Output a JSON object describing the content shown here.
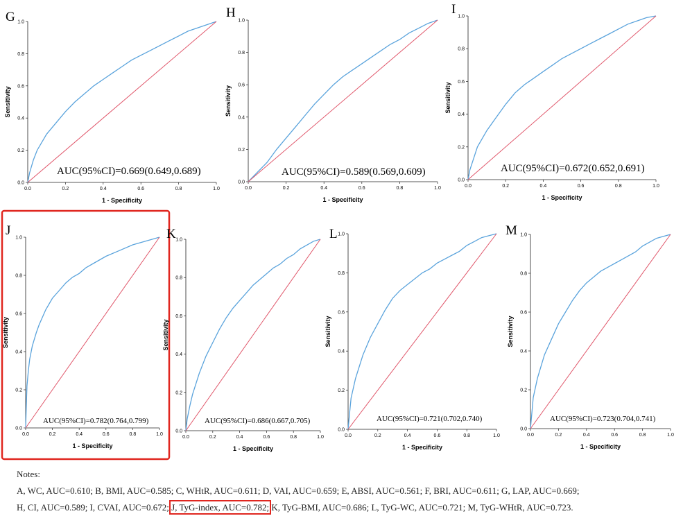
{
  "chart_data": [
    {
      "panel": "G",
      "type": "line",
      "xlabel": "1 - Specificity",
      "ylabel": "Sensitivity",
      "xlim": [
        0,
        1
      ],
      "ylim": [
        0,
        1
      ],
      "xticks": [
        "0.0",
        "0.2",
        "0.4",
        "0.6",
        "0.8",
        "1.0"
      ],
      "yticks": [
        "0.0",
        "0.2",
        "0.4",
        "0.6",
        "0.8",
        "1.0"
      ],
      "annotation": "AUC(95%CI)=0.669(0.649,0.689)",
      "auc": 0.669,
      "series": [
        {
          "color": "#5aa3dc",
          "x": [
            0,
            0.01,
            0.03,
            0.05,
            0.1,
            0.15,
            0.2,
            0.25,
            0.3,
            0.35,
            0.4,
            0.45,
            0.5,
            0.55,
            0.6,
            0.65,
            0.7,
            0.75,
            0.8,
            0.85,
            0.9,
            0.95,
            1.0
          ],
          "y": [
            0,
            0.06,
            0.14,
            0.2,
            0.3,
            0.37,
            0.44,
            0.5,
            0.55,
            0.6,
            0.64,
            0.68,
            0.72,
            0.76,
            0.79,
            0.82,
            0.85,
            0.88,
            0.91,
            0.94,
            0.96,
            0.98,
            1.0
          ]
        },
        {
          "color": "#e0566a",
          "x": [
            0,
            1
          ],
          "y": [
            0,
            1
          ]
        }
      ]
    },
    {
      "panel": "H",
      "type": "line",
      "xlabel": "1 - Specificity",
      "ylabel": "Sensitivity",
      "xlim": [
        0,
        1
      ],
      "ylim": [
        0,
        1
      ],
      "xticks": [
        "0.0",
        "0.2",
        "0.4",
        "0.6",
        "0.8",
        "1.0"
      ],
      "yticks": [
        "0.0",
        "0.2",
        "0.4",
        "0.6",
        "0.8",
        "1.0"
      ],
      "annotation": "AUC(95%CI)=0.589(0.569,0.609)",
      "auc": 0.589,
      "series": [
        {
          "color": "#5aa3dc",
          "x": [
            0,
            0.05,
            0.1,
            0.15,
            0.2,
            0.25,
            0.3,
            0.35,
            0.4,
            0.45,
            0.5,
            0.55,
            0.6,
            0.65,
            0.7,
            0.75,
            0.8,
            0.85,
            0.9,
            0.95,
            1.0
          ],
          "y": [
            0,
            0.06,
            0.12,
            0.2,
            0.27,
            0.34,
            0.41,
            0.48,
            0.54,
            0.6,
            0.65,
            0.69,
            0.73,
            0.77,
            0.81,
            0.85,
            0.88,
            0.92,
            0.95,
            0.98,
            1.0
          ]
        },
        {
          "color": "#e0566a",
          "x": [
            0,
            1
          ],
          "y": [
            0,
            1
          ]
        }
      ]
    },
    {
      "panel": "I",
      "type": "line",
      "xlabel": "1 - Specificity",
      "ylabel": "Sensitivity",
      "xlim": [
        0,
        1
      ],
      "ylim": [
        0,
        1
      ],
      "xticks": [
        "0.0",
        "0.2",
        "0.4",
        "0.6",
        "0.8",
        "1.0"
      ],
      "yticks": [
        "0.0",
        "0.2",
        "0.4",
        "0.6",
        "0.8",
        "1.0"
      ],
      "annotation": "AUC(95%CI)=0.672(0.652,0.691)",
      "auc": 0.672,
      "series": [
        {
          "color": "#5aa3dc",
          "x": [
            0,
            0.01,
            0.03,
            0.05,
            0.1,
            0.15,
            0.2,
            0.25,
            0.3,
            0.35,
            0.4,
            0.45,
            0.5,
            0.55,
            0.6,
            0.65,
            0.7,
            0.75,
            0.8,
            0.85,
            0.9,
            0.95,
            1.0
          ],
          "y": [
            0,
            0.06,
            0.13,
            0.2,
            0.3,
            0.38,
            0.46,
            0.53,
            0.58,
            0.62,
            0.66,
            0.7,
            0.74,
            0.77,
            0.8,
            0.83,
            0.86,
            0.89,
            0.92,
            0.95,
            0.97,
            0.99,
            1.0
          ]
        },
        {
          "color": "#e0566a",
          "x": [
            0,
            1
          ],
          "y": [
            0,
            1
          ]
        }
      ]
    },
    {
      "panel": "J",
      "type": "line",
      "xlabel": "1 - Specificity",
      "ylabel": "Sensitivity",
      "xlim": [
        0,
        1
      ],
      "ylim": [
        0,
        1
      ],
      "xticks": [
        "0.0",
        "0.2",
        "0.4",
        "0.6",
        "0.8",
        "1.0"
      ],
      "yticks": [
        "0.0",
        "0.2",
        "0.4",
        "0.6",
        "0.8",
        "1.0"
      ],
      "annotation": "AUC(95%CI)=0.782(0.764,0.799)",
      "auc": 0.782,
      "highlighted": true,
      "series": [
        {
          "color": "#5aa3dc",
          "x": [
            0,
            0.005,
            0.01,
            0.02,
            0.03,
            0.05,
            0.08,
            0.1,
            0.15,
            0.2,
            0.25,
            0.3,
            0.35,
            0.4,
            0.45,
            0.5,
            0.55,
            0.6,
            0.7,
            0.8,
            0.9,
            1.0
          ],
          "y": [
            0,
            0.12,
            0.22,
            0.3,
            0.36,
            0.43,
            0.5,
            0.54,
            0.62,
            0.68,
            0.72,
            0.76,
            0.79,
            0.81,
            0.84,
            0.86,
            0.88,
            0.9,
            0.93,
            0.96,
            0.98,
            1.0
          ]
        },
        {
          "color": "#e0566a",
          "x": [
            0,
            1
          ],
          "y": [
            0,
            1
          ]
        }
      ]
    },
    {
      "panel": "K",
      "type": "line",
      "xlabel": "1 - Specificity",
      "ylabel": "Sensitivity",
      "xlim": [
        0,
        1
      ],
      "ylim": [
        0,
        1
      ],
      "xticks": [
        "0.0",
        "0.2",
        "0.4",
        "0.6",
        "0.8",
        "1.0"
      ],
      "yticks": [
        "0.0",
        "0.2",
        "0.4",
        "0.6",
        "0.8",
        "1.0"
      ],
      "annotation": "AUC(95%CI)=0.686(0.667,0.705)",
      "auc": 0.686,
      "series": [
        {
          "color": "#5aa3dc",
          "x": [
            0,
            0.01,
            0.03,
            0.05,
            0.1,
            0.15,
            0.2,
            0.25,
            0.3,
            0.35,
            0.4,
            0.45,
            0.5,
            0.55,
            0.6,
            0.65,
            0.7,
            0.75,
            0.8,
            0.85,
            0.9,
            0.95,
            1.0
          ],
          "y": [
            0,
            0.06,
            0.13,
            0.19,
            0.3,
            0.39,
            0.46,
            0.53,
            0.59,
            0.64,
            0.68,
            0.72,
            0.76,
            0.79,
            0.82,
            0.85,
            0.87,
            0.9,
            0.92,
            0.95,
            0.97,
            0.99,
            1.0
          ]
        },
        {
          "color": "#e0566a",
          "x": [
            0,
            1
          ],
          "y": [
            0,
            1
          ]
        }
      ]
    },
    {
      "panel": "L",
      "type": "line",
      "xlabel": "1 - Specificity",
      "ylabel": "Sensitivity",
      "xlim": [
        0,
        1
      ],
      "ylim": [
        0,
        1
      ],
      "xticks": [
        "0.0",
        "0.2",
        "0.4",
        "0.6",
        "0.8",
        "1.0"
      ],
      "yticks": [
        "0.0",
        "0.2",
        "0.4",
        "0.6",
        "0.8",
        "1.0"
      ],
      "annotation": "AUC(95%CI)=0.721(0.702,0.740)",
      "auc": 0.721,
      "series": [
        {
          "color": "#5aa3dc",
          "x": [
            0,
            0.01,
            0.02,
            0.05,
            0.1,
            0.15,
            0.2,
            0.25,
            0.3,
            0.35,
            0.4,
            0.45,
            0.5,
            0.55,
            0.6,
            0.65,
            0.7,
            0.75,
            0.8,
            0.85,
            0.9,
            0.95,
            1.0
          ],
          "y": [
            0,
            0.08,
            0.16,
            0.26,
            0.38,
            0.47,
            0.54,
            0.61,
            0.67,
            0.71,
            0.74,
            0.77,
            0.8,
            0.82,
            0.85,
            0.87,
            0.89,
            0.91,
            0.94,
            0.96,
            0.98,
            0.99,
            1.0
          ]
        },
        {
          "color": "#e0566a",
          "x": [
            0,
            1
          ],
          "y": [
            0,
            1
          ]
        }
      ]
    },
    {
      "panel": "M",
      "type": "line",
      "xlabel": "1 - Specificity",
      "ylabel": "Sensitivity",
      "xlim": [
        0,
        1
      ],
      "ylim": [
        0,
        1
      ],
      "xticks": [
        "0.0",
        "0.2",
        "0.4",
        "0.6",
        "0.8",
        "1.0"
      ],
      "yticks": [
        "0.0",
        "0.2",
        "0.4",
        "0.6",
        "0.8",
        "1.0"
      ],
      "annotation": "AUC(95%CI)=0.723(0.704,0.741)",
      "auc": 0.723,
      "series": [
        {
          "color": "#5aa3dc",
          "x": [
            0,
            0.01,
            0.02,
            0.05,
            0.1,
            0.15,
            0.2,
            0.25,
            0.3,
            0.35,
            0.4,
            0.45,
            0.5,
            0.55,
            0.6,
            0.65,
            0.7,
            0.75,
            0.8,
            0.85,
            0.9,
            0.95,
            1.0
          ],
          "y": [
            0,
            0.08,
            0.16,
            0.26,
            0.38,
            0.46,
            0.54,
            0.6,
            0.66,
            0.71,
            0.75,
            0.78,
            0.81,
            0.83,
            0.85,
            0.87,
            0.89,
            0.91,
            0.94,
            0.96,
            0.98,
            0.99,
            1.0
          ]
        },
        {
          "color": "#e0566a",
          "x": [
            0,
            1
          ],
          "y": [
            0,
            1
          ]
        }
      ]
    }
  ],
  "highlight_color": "#e0261f",
  "notes": {
    "heading": "Notes:",
    "line1": "A, WC, AUC=0.610; B, BMI, AUC=0.585; C, WHtR, AUC=0.611; D, VAI, AUC=0.659; E, ABSI, AUC=0.561; F, BRI, AUC=0.611; G, LAP, AUC=0.669;",
    "line2_before": "H, CI, AUC=0.589; I, CVAI, AUC=0.672; ",
    "line2_highlight": "J, TyG-index, AUC=0.782;",
    "line2_after": " K, TyG-BMI, AUC=0.686; L, TyG-WC, AUC=0.721; M, TyG-WHtR, AUC=0.723."
  }
}
